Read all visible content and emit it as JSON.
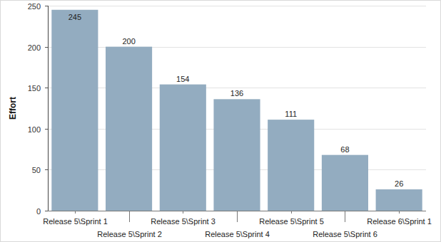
{
  "chart_data": {
    "type": "bar",
    "ylabel": "Effort",
    "categories": [
      "Release 5\\Sprint 1",
      "Release 5\\Sprint 2",
      "Release 5\\Sprint 3",
      "Release 5\\Sprint 4",
      "Release 5\\Sprint 5",
      "Release 5\\Sprint 6",
      "Release 6\\Sprint 1"
    ],
    "values": [
      245,
      200,
      154,
      136,
      111,
      68,
      26
    ],
    "color": "#93acc0",
    "ylim": [
      0,
      250
    ],
    "yticks": [
      0,
      50,
      100,
      150,
      200,
      250
    ],
    "grid": true,
    "data_labels": true
  }
}
